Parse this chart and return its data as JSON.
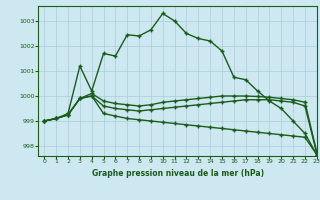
{
  "title": "Graphe pression niveau de la mer (hPa)",
  "background_color": "#cde8f0",
  "grid_color": "#aaccda",
  "line_color": "#1a5c1a",
  "xlim": [
    -0.5,
    23
  ],
  "ylim": [
    997.6,
    1003.6
  ],
  "yticks": [
    998,
    999,
    1000,
    1001,
    1002,
    1003
  ],
  "xticks": [
    0,
    1,
    2,
    3,
    4,
    5,
    6,
    7,
    8,
    9,
    10,
    11,
    12,
    13,
    14,
    15,
    16,
    17,
    18,
    19,
    20,
    21,
    22,
    23
  ],
  "series": [
    [
      999.0,
      999.1,
      999.25,
      999.9,
      1000.0,
      999.3,
      999.2,
      999.1,
      999.05,
      999.0,
      998.95,
      998.9,
      998.85,
      998.8,
      998.75,
      998.7,
      998.65,
      998.6,
      998.55,
      998.5,
      998.45,
      998.4,
      998.35,
      997.65
    ],
    [
      999.0,
      999.1,
      999.25,
      999.9,
      1000.0,
      999.6,
      999.5,
      999.45,
      999.4,
      999.45,
      999.5,
      999.55,
      999.6,
      999.65,
      999.7,
      999.75,
      999.8,
      999.85,
      999.85,
      999.85,
      999.8,
      999.75,
      999.6,
      997.7
    ],
    [
      999.0,
      999.1,
      999.25,
      999.9,
      1000.1,
      999.8,
      999.7,
      999.65,
      999.6,
      999.65,
      999.75,
      999.8,
      999.85,
      999.9,
      999.95,
      1000.0,
      1000.0,
      1000.0,
      999.98,
      999.95,
      999.9,
      999.85,
      999.75,
      997.75
    ],
    [
      999.0,
      999.1,
      999.3,
      1001.2,
      1000.2,
      1001.7,
      1001.6,
      1002.45,
      1002.4,
      1002.65,
      1003.3,
      1003.0,
      1002.5,
      1002.3,
      1002.2,
      1001.8,
      1000.75,
      1000.65,
      1000.2,
      999.8,
      999.5,
      999.0,
      998.5,
      997.65
    ]
  ]
}
